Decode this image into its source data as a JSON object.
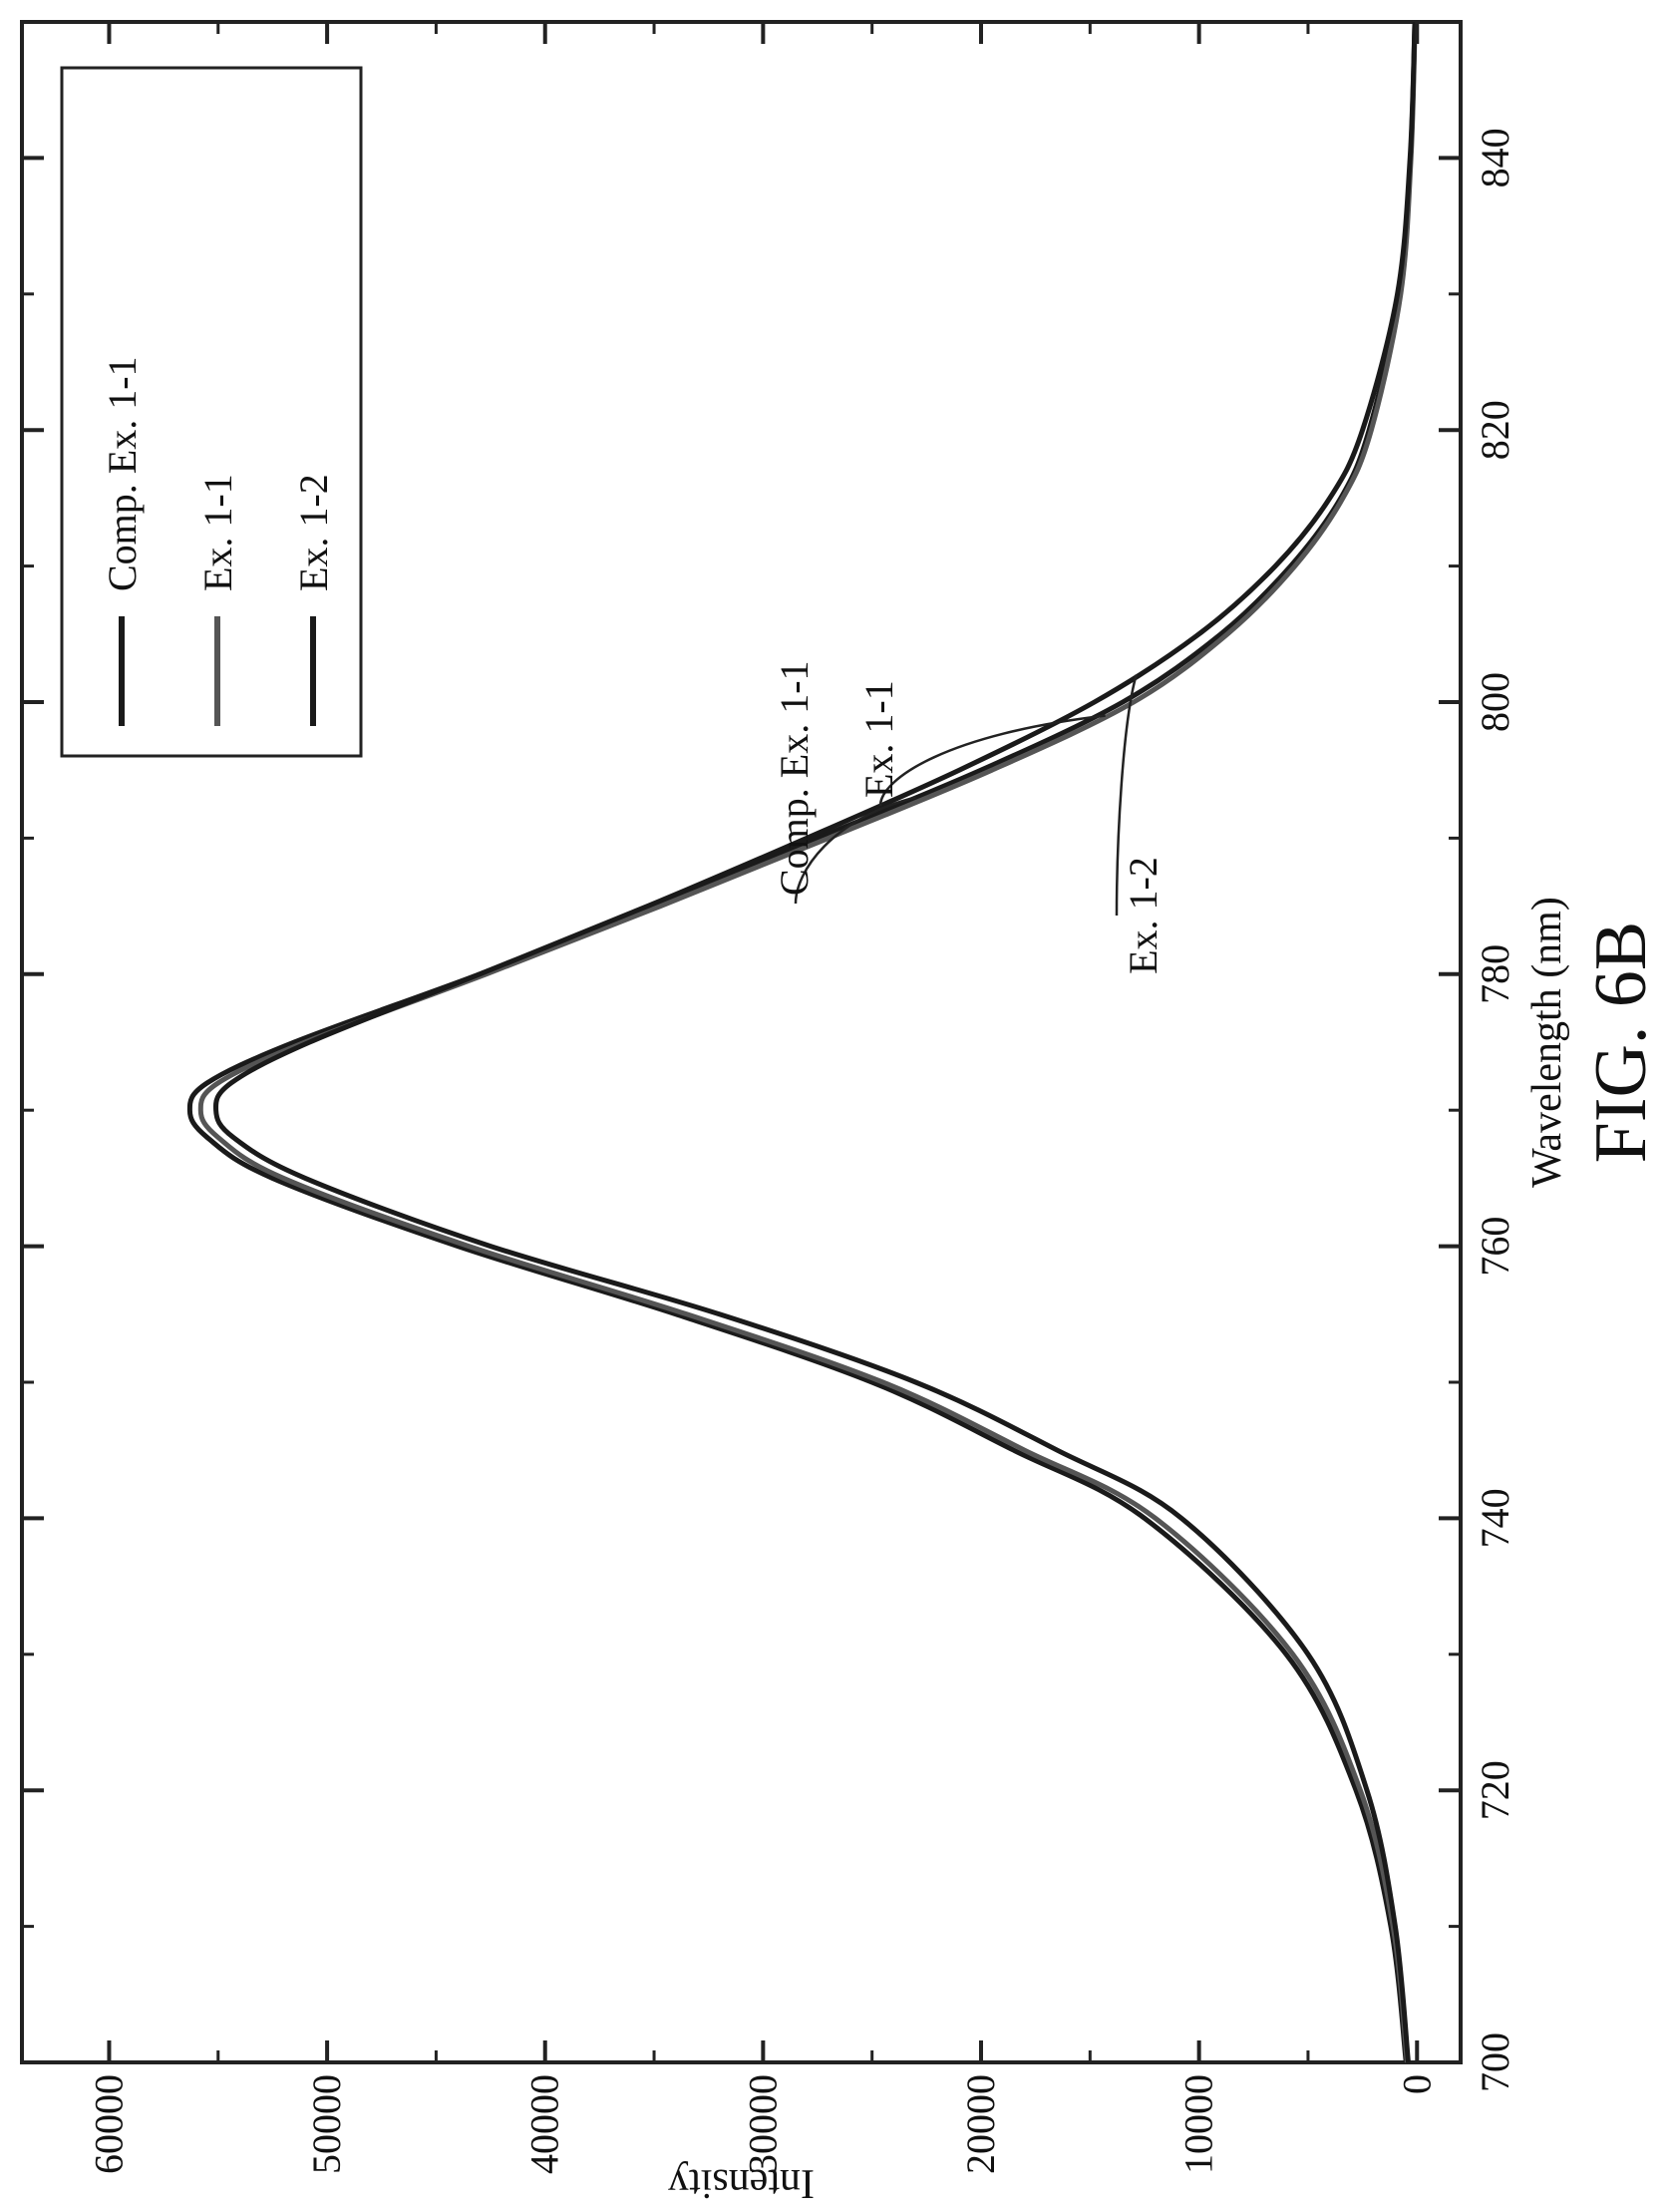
{
  "figure_label": "FIG. 6B",
  "chart_data": {
    "type": "line",
    "xlabel": "Wavelength (nm)",
    "ylabel": "Intensity",
    "xlim": [
      700,
      850
    ],
    "ylim": [
      -2000,
      64000
    ],
    "x_ticks": [
      700,
      720,
      740,
      760,
      780,
      800,
      820,
      840
    ],
    "y_ticks": [
      0,
      10000,
      20000,
      30000,
      40000,
      50000,
      60000
    ],
    "x_tick_labels": [
      "700",
      "720",
      "740",
      "760",
      "780",
      "800",
      "820",
      "840"
    ],
    "y_tick_labels": [
      "0",
      "10000",
      "20000",
      "30000",
      "40000",
      "50000",
      "60000"
    ],
    "legend_position": "top-right",
    "grid": false,
    "x": [
      700,
      710,
      720,
      730,
      740,
      745,
      750,
      755,
      760,
      765,
      768,
      770,
      772,
      775,
      780,
      785,
      790,
      795,
      800,
      805,
      810,
      815,
      820,
      830,
      840,
      850
    ],
    "series": [
      {
        "name": "Comp. Ex. 1-1",
        "color": "#1a1a1a",
        "values": [
          500,
          1200,
          2800,
          6000,
          12500,
          18500,
          25000,
          34000,
          44000,
          52500,
          55500,
          56300,
          55500,
          51500,
          43000,
          35000,
          27500,
          20000,
          13500,
          9000,
          5800,
          3500,
          2200,
          800,
          300,
          100
        ]
      },
      {
        "name": "Ex. 1-1",
        "color": "#555555",
        "values": [
          450,
          1100,
          2600,
          5700,
          12000,
          18000,
          24500,
          33500,
          43500,
          52000,
          55000,
          55800,
          55000,
          51000,
          42700,
          34700,
          27000,
          19500,
          13000,
          8700,
          5600,
          3400,
          2100,
          750,
          280,
          90
        ]
      },
      {
        "name": "Ex. 1-2",
        "color": "#1a1a1a",
        "values": [
          400,
          1000,
          2300,
          5000,
          10800,
          16500,
          23000,
          32000,
          42500,
          51000,
          54300,
          55100,
          54400,
          50800,
          43000,
          35300,
          28000,
          21000,
          14800,
          10000,
          6500,
          4000,
          2500,
          900,
          320,
          100
        ]
      }
    ],
    "annotations": [
      {
        "text": "Comp. Ex. 1-1",
        "series": "Comp. Ex. 1-1"
      },
      {
        "text": "Ex. 1-1",
        "series": "Ex. 1-1"
      },
      {
        "text": "Ex. 1-2",
        "series": "Ex. 1-2"
      }
    ]
  }
}
